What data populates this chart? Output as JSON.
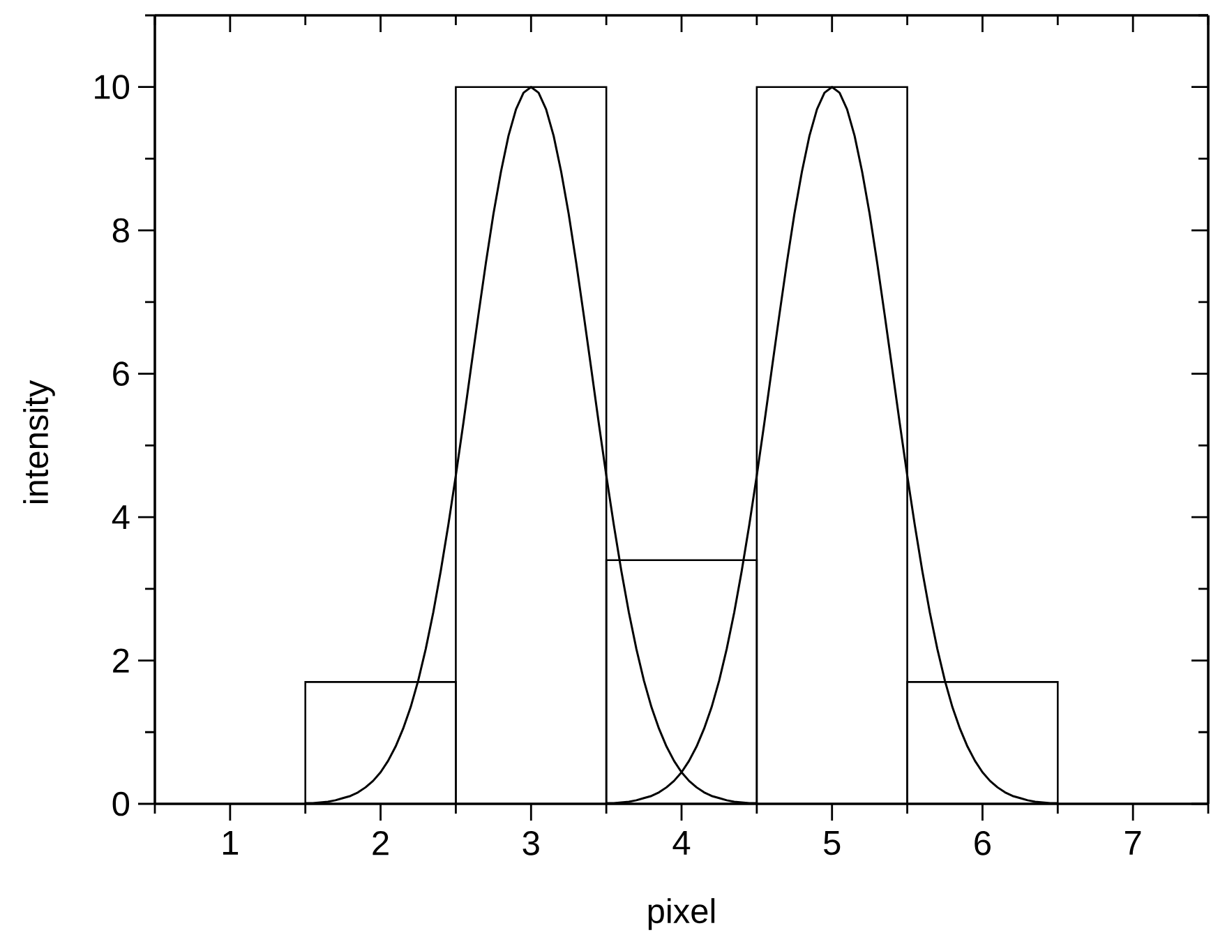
{
  "chart_data": {
    "type": "histogram",
    "xlabel": "pixel",
    "ylabel": "intensity",
    "xlim": [
      0.5,
      7.5
    ],
    "ylim": [
      0,
      11
    ],
    "xticks": [
      {
        "value": 0.5,
        "label": null
      },
      1,
      {
        "value": 1.5,
        "label": null
      },
      2,
      {
        "value": 2.5,
        "label": null
      },
      3,
      {
        "value": 3.5,
        "label": null
      },
      4,
      {
        "value": 4.5,
        "label": null
      },
      5,
      {
        "value": 5.5,
        "label": null
      },
      6,
      {
        "value": 6.5,
        "label": null
      },
      7,
      {
        "value": 7.5,
        "label": null
      }
    ],
    "yticks": [
      0,
      {
        "value": 1,
        "label": null
      },
      2,
      {
        "value": 3,
        "label": null
      },
      4,
      {
        "value": 5,
        "label": null
      },
      6,
      {
        "value": 7,
        "label": null
      },
      8,
      {
        "value": 9,
        "label": null
      },
      10,
      {
        "value": 11,
        "label": null
      }
    ],
    "marker": "none",
    "line_style": "solid",
    "series": [
      {
        "bins": [
          1.5,
          2.5,
          3.5,
          4.5,
          5.5,
          6.5
        ],
        "values": [
          1.7,
          10,
          3.4,
          10,
          1.7
        ],
        "color": "#000000"
      },
      {
        "type": "line",
        "color": "#000000",
        "x": [
          1.5,
          1.55,
          1.6,
          1.65,
          1.7,
          1.75,
          1.8,
          1.85,
          1.9,
          1.95,
          2.0,
          2.05,
          2.1,
          2.15,
          2.2,
          2.25,
          2.3,
          2.35,
          2.4,
          2.45,
          2.5,
          2.55,
          2.6,
          2.65,
          2.7,
          2.75,
          2.8,
          2.85,
          2.9,
          2.95,
          3.0,
          3.05,
          3.1,
          3.15,
          3.2,
          3.25,
          3.3,
          3.35,
          3.4,
          3.45,
          3.5,
          3.55,
          3.6,
          3.65,
          3.7,
          3.75,
          3.8,
          3.85,
          3.9,
          3.95,
          4.0,
          4.05,
          4.1,
          4.15,
          4.2,
          4.25,
          4.3,
          4.35,
          4.4,
          4.45,
          4.5
        ],
        "values": [
          0.01,
          0.01,
          0.02,
          0.03,
          0.05,
          0.08,
          0.11,
          0.16,
          0.23,
          0.32,
          0.44,
          0.6,
          0.8,
          1.05,
          1.35,
          1.72,
          2.16,
          2.67,
          3.25,
          3.89,
          4.58,
          5.31,
          6.07,
          6.82,
          7.55,
          8.23,
          8.82,
          9.32,
          9.69,
          9.92,
          10,
          9.92,
          9.69,
          9.32,
          8.82,
          8.23,
          7.55,
          6.82,
          6.07,
          5.31,
          4.58,
          3.89,
          3.25,
          2.67,
          2.16,
          1.72,
          1.35,
          1.05,
          0.8,
          0.6,
          0.44,
          0.32,
          0.23,
          0.16,
          0.11,
          0.08,
          0.05,
          0.03,
          0.02,
          0.01,
          0.01
        ]
      },
      {
        "type": "line",
        "color": "#000000",
        "x": [
          3.5,
          3.55,
          3.6,
          3.65,
          3.7,
          3.75,
          3.8,
          3.85,
          3.9,
          3.95,
          4.0,
          4.05,
          4.1,
          4.15,
          4.2,
          4.25,
          4.3,
          4.35,
          4.4,
          4.45,
          4.5,
          4.55,
          4.6,
          4.65,
          4.7,
          4.75,
          4.8,
          4.85,
          4.9,
          4.95,
          5.0,
          5.05,
          5.1,
          5.15,
          5.2,
          5.25,
          5.3,
          5.35,
          5.4,
          5.45,
          5.5,
          5.55,
          5.6,
          5.65,
          5.7,
          5.75,
          5.8,
          5.85,
          5.9,
          5.95,
          6.0,
          6.05,
          6.1,
          6.15,
          6.2,
          6.25,
          6.3,
          6.35,
          6.4,
          6.45,
          6.5
        ],
        "values": [
          0.01,
          0.01,
          0.02,
          0.03,
          0.05,
          0.08,
          0.11,
          0.16,
          0.23,
          0.32,
          0.44,
          0.6,
          0.8,
          1.05,
          1.35,
          1.72,
          2.16,
          2.67,
          3.25,
          3.89,
          4.58,
          5.31,
          6.07,
          6.82,
          7.55,
          8.23,
          8.82,
          9.32,
          9.69,
          9.92,
          10,
          9.92,
          9.69,
          9.32,
          8.82,
          8.23,
          7.55,
          6.82,
          6.07,
          5.31,
          4.58,
          3.89,
          3.25,
          2.67,
          2.16,
          1.72,
          1.35,
          1.05,
          0.8,
          0.6,
          0.44,
          0.32,
          0.23,
          0.16,
          0.11,
          0.08,
          0.05,
          0.03,
          0.02,
          0.01,
          0.01
        ]
      }
    ]
  }
}
